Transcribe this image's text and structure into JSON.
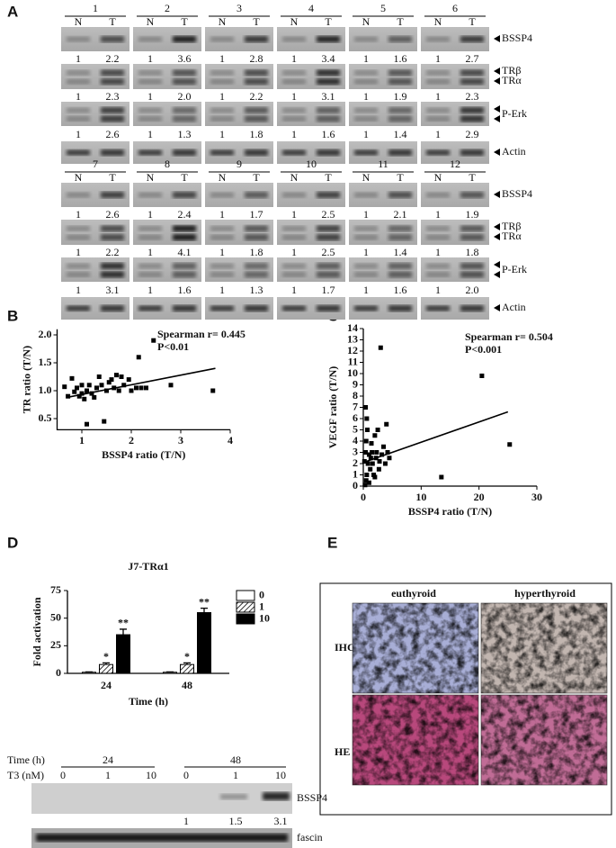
{
  "panel_letters": [
    "A",
    "B",
    "C",
    "D",
    "E"
  ],
  "panel_a": {
    "lane_labels": [
      "N",
      "T"
    ],
    "row_labels": {
      "bssp4": "BSSP4",
      "tr_beta": "TRβ",
      "tr_alpha": "TRα",
      "perk": "P-Erk",
      "actin": "Actin"
    },
    "sets": [
      {
        "lanes": [
          "1",
          "2",
          "3",
          "4",
          "5",
          "6"
        ],
        "bssp4": [
          [
            "1",
            "2.2"
          ],
          [
            "1",
            "3.6"
          ],
          [
            "1",
            "2.8"
          ],
          [
            "1",
            "3.4"
          ],
          [
            "1",
            "1.6"
          ],
          [
            "1",
            "2.7"
          ]
        ],
        "tr": [
          [
            "1",
            "2.3"
          ],
          [
            "1",
            "2.0"
          ],
          [
            "1",
            "2.2"
          ],
          [
            "1",
            "3.1"
          ],
          [
            "1",
            "1.9"
          ],
          [
            "1",
            "2.3"
          ]
        ],
        "perk": [
          [
            "1",
            "2.6"
          ],
          [
            "1",
            "1.3"
          ],
          [
            "1",
            "1.8"
          ],
          [
            "1",
            "1.6"
          ],
          [
            "1",
            "1.4"
          ],
          [
            "1",
            "2.9"
          ]
        ]
      },
      {
        "lanes": [
          "7",
          "8",
          "9",
          "10",
          "11",
          "12"
        ],
        "bssp4": [
          [
            "1",
            "2.6"
          ],
          [
            "1",
            "2.4"
          ],
          [
            "1",
            "1.7"
          ],
          [
            "1",
            "2.5"
          ],
          [
            "1",
            "2.1"
          ],
          [
            "1",
            "1.9"
          ]
        ],
        "tr": [
          [
            "1",
            "2.2"
          ],
          [
            "1",
            "4.1"
          ],
          [
            "1",
            "1.8"
          ],
          [
            "1",
            "2.5"
          ],
          [
            "1",
            "1.4"
          ],
          [
            "1",
            "1.8"
          ]
        ],
        "perk": [
          [
            "1",
            "3.1"
          ],
          [
            "1",
            "1.6"
          ],
          [
            "1",
            "1.3"
          ],
          [
            "1",
            "1.7"
          ],
          [
            "1",
            "1.6"
          ],
          [
            "1",
            "2.0"
          ]
        ]
      }
    ]
  },
  "chart_data": [
    {
      "type": "scatter",
      "annotation": "Spearman r= 0.445",
      "p_value": "P<0.01",
      "x_label": "BSSP4 ratio (T/N)",
      "y_label": "TR ratio (T/N)",
      "color": "#000000",
      "x": [
        0.65,
        0.72,
        0.8,
        0.85,
        0.9,
        0.95,
        1.0,
        1.0,
        1.05,
        1.1,
        1.1,
        1.15,
        1.2,
        1.25,
        1.3,
        1.35,
        1.4,
        1.45,
        1.5,
        1.55,
        1.6,
        1.65,
        1.7,
        1.75,
        1.8,
        1.85,
        1.95,
        2.0,
        2.1,
        2.15,
        2.2,
        2.3,
        2.45,
        2.8,
        3.65
      ],
      "values": [
        1.07,
        0.9,
        1.22,
        0.98,
        1.05,
        0.9,
        1.1,
        0.95,
        0.85,
        1.0,
        0.4,
        1.1,
        0.95,
        0.88,
        1.05,
        1.25,
        1.1,
        0.45,
        1.0,
        1.15,
        1.2,
        1.05,
        1.28,
        1.0,
        1.25,
        1.1,
        1.2,
        1.0,
        1.05,
        1.6,
        1.05,
        1.05,
        1.9,
        1.1,
        1.0
      ],
      "fit_line": {
        "x": [
          0.7,
          3.7
        ],
        "y": [
          0.88,
          1.4
        ]
      },
      "xlim": [
        0.5,
        4
      ],
      "ylim": [
        0.3,
        2.1
      ],
      "xticks": [
        1,
        2,
        3,
        4
      ],
      "yticks": [
        {
          "value": 0.5,
          "label": "0.5"
        },
        {
          "value": 1,
          "label": "1.0"
        },
        {
          "value": 1.5,
          "label": "1.5"
        },
        {
          "value": 2,
          "label": "2.0"
        }
      ]
    },
    {
      "type": "scatter",
      "annotation": "Spearman r= 0.504",
      "p_value": "P<0.001",
      "x_label": "BSSP4 ratio (T/N)",
      "y_label": "VEGF ratio (T/N)",
      "color": "#000000",
      "x": [
        0.3,
        0.5,
        0.6,
        0.8,
        0.4,
        0.5,
        0.7,
        0.6,
        0.4,
        1,
        1.2,
        1.3,
        1.5,
        1.6,
        1.8,
        2,
        2.2,
        2.3,
        2.5,
        2.7,
        2.8,
        3,
        3.2,
        3.5,
        3.8,
        4,
        4.2,
        4.5,
        0.2,
        1,
        1.4,
        2,
        13.5,
        20.5,
        25.3
      ],
      "values": [
        0.1,
        0.5,
        1,
        2,
        3,
        4,
        5,
        6,
        7,
        0.3,
        1.5,
        2.5,
        3,
        2,
        1,
        4.5,
        2.5,
        3,
        5,
        1.5,
        2.2,
        12.3,
        2.8,
        3.5,
        2,
        5.5,
        3,
        2.5,
        2.2,
        2.8,
        3.8,
        0.8,
        0.8,
        9.8,
        3.7
      ],
      "fit_line": {
        "x": [
          0,
          25
        ],
        "y": [
          2.1,
          6.6
        ]
      },
      "xlim": [
        0,
        30
      ],
      "ylim": [
        0,
        14
      ],
      "xticks": [
        0,
        10,
        20,
        30
      ],
      "yticks": [
        0,
        1,
        2,
        3,
        4,
        5,
        6,
        7,
        8,
        9,
        10,
        11,
        12,
        13,
        14
      ]
    },
    {
      "type": "bar",
      "title": "J7-TRα1",
      "x_label": "Time (h)",
      "y_label": "Fold activation",
      "categories": [
        "24",
        "48"
      ],
      "series": [
        {
          "name": "0",
          "color": "#ffffff",
          "values": [
            1,
            1
          ],
          "errors": [
            0.3,
            0.3
          ]
        },
        {
          "name": "1",
          "color": "hatch",
          "values": [
            8,
            8
          ],
          "errors": [
            1.5,
            1.5
          ],
          "sig_labels": [
            "*",
            "*"
          ]
        },
        {
          "name": "10",
          "color": "#000000",
          "values": [
            35,
            55
          ],
          "errors": [
            5,
            4
          ],
          "sig_labels": [
            "**",
            "**"
          ]
        }
      ],
      "ylim": [
        0,
        75
      ],
      "yticks": [
        0,
        25,
        50,
        75
      ],
      "legend": "upper right"
    }
  ],
  "panel_d_blot": {
    "time_label": "Time (h)",
    "times": [
      "24",
      "48"
    ],
    "t3_label": "T3 (nM)",
    "doses": [
      "0",
      "1",
      "10",
      "0",
      "1",
      "10"
    ],
    "bssp4": "BSSP4",
    "ratios": [
      "1",
      "1.5",
      "3.1"
    ],
    "fascin": "fascin"
  },
  "panel_e": {
    "columns": [
      "euthyroid",
      "hyperthyroid"
    ],
    "rows": [
      "IHC",
      "HE"
    ]
  }
}
